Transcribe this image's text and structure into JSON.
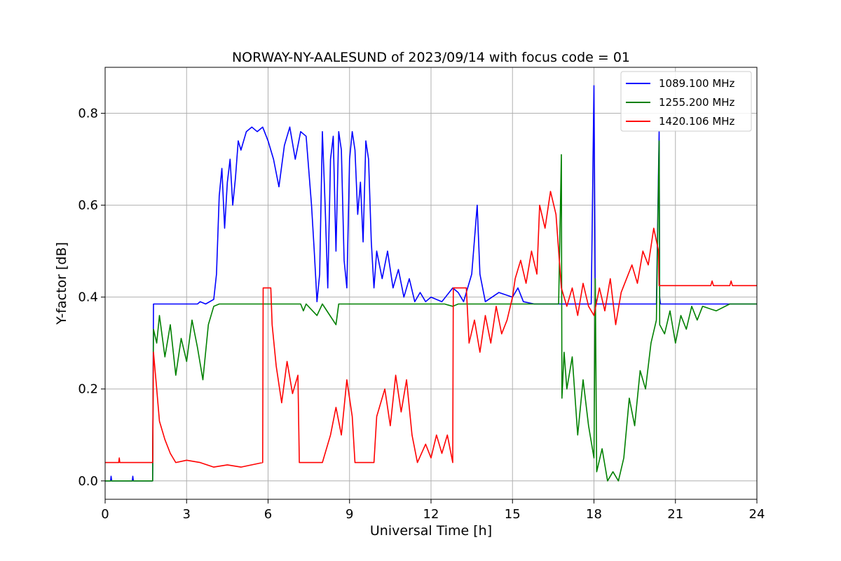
{
  "chart_data": {
    "type": "line",
    "title": "NORWAY-NY-AALESUND of 2023/09/14 with focus code = 01",
    "xlabel": "Universal Time [h]",
    "ylabel": "Y-factor [dB]",
    "xlim": [
      0,
      24
    ],
    "ylim": [
      -0.04,
      0.9
    ],
    "xticks": [
      0,
      3,
      6,
      9,
      12,
      15,
      18,
      21,
      24
    ],
    "xtick_labels": [
      "0",
      "3",
      "6",
      "9",
      "12",
      "15",
      "18",
      "21",
      "24"
    ],
    "yticks": [
      0.0,
      0.2,
      0.4,
      0.6,
      0.8
    ],
    "ytick_labels": [
      "0.0",
      "0.2",
      "0.4",
      "0.6",
      "0.8"
    ],
    "grid": true,
    "legend_position": "top-right",
    "series": [
      {
        "name": "1089.100 MHz",
        "color": "#0000ff",
        "points": [
          [
            0,
            0.0
          ],
          [
            0.2,
            0.0
          ],
          [
            0.22,
            0.01
          ],
          [
            0.24,
            0.0
          ],
          [
            1.0,
            0.0
          ],
          [
            1.02,
            0.01
          ],
          [
            1.04,
            0.0
          ],
          [
            1.75,
            0.0
          ],
          [
            1.78,
            0.385
          ],
          [
            3.4,
            0.385
          ],
          [
            3.5,
            0.39
          ],
          [
            3.7,
            0.385
          ],
          [
            4.0,
            0.395
          ],
          [
            4.1,
            0.45
          ],
          [
            4.2,
            0.62
          ],
          [
            4.3,
            0.68
          ],
          [
            4.4,
            0.55
          ],
          [
            4.5,
            0.65
          ],
          [
            4.6,
            0.7
          ],
          [
            4.7,
            0.6
          ],
          [
            4.8,
            0.66
          ],
          [
            4.9,
            0.74
          ],
          [
            5.0,
            0.72
          ],
          [
            5.2,
            0.76
          ],
          [
            5.4,
            0.77
          ],
          [
            5.6,
            0.76
          ],
          [
            5.8,
            0.77
          ],
          [
            6.0,
            0.74
          ],
          [
            6.2,
            0.7
          ],
          [
            6.4,
            0.64
          ],
          [
            6.6,
            0.73
          ],
          [
            6.8,
            0.77
          ],
          [
            7.0,
            0.7
          ],
          [
            7.2,
            0.76
          ],
          [
            7.4,
            0.75
          ],
          [
            7.6,
            0.6
          ],
          [
            7.7,
            0.5
          ],
          [
            7.8,
            0.39
          ],
          [
            7.9,
            0.45
          ],
          [
            8.0,
            0.76
          ],
          [
            8.1,
            0.6
          ],
          [
            8.2,
            0.42
          ],
          [
            8.3,
            0.7
          ],
          [
            8.4,
            0.75
          ],
          [
            8.5,
            0.5
          ],
          [
            8.6,
            0.76
          ],
          [
            8.7,
            0.72
          ],
          [
            8.8,
            0.48
          ],
          [
            8.9,
            0.42
          ],
          [
            9.0,
            0.7
          ],
          [
            9.1,
            0.76
          ],
          [
            9.2,
            0.72
          ],
          [
            9.3,
            0.58
          ],
          [
            9.4,
            0.65
          ],
          [
            9.5,
            0.52
          ],
          [
            9.6,
            0.74
          ],
          [
            9.7,
            0.7
          ],
          [
            9.8,
            0.52
          ],
          [
            9.9,
            0.42
          ],
          [
            10.0,
            0.5
          ],
          [
            10.2,
            0.44
          ],
          [
            10.4,
            0.5
          ],
          [
            10.6,
            0.42
          ],
          [
            10.8,
            0.46
          ],
          [
            11.0,
            0.4
          ],
          [
            11.2,
            0.44
          ],
          [
            11.4,
            0.39
          ],
          [
            11.6,
            0.41
          ],
          [
            11.8,
            0.39
          ],
          [
            12.0,
            0.4
          ],
          [
            12.4,
            0.39
          ],
          [
            12.8,
            0.42
          ],
          [
            13.0,
            0.41
          ],
          [
            13.2,
            0.39
          ],
          [
            13.5,
            0.45
          ],
          [
            13.7,
            0.6
          ],
          [
            13.8,
            0.45
          ],
          [
            14.0,
            0.39
          ],
          [
            14.5,
            0.41
          ],
          [
            15.0,
            0.4
          ],
          [
            15.2,
            0.42
          ],
          [
            15.4,
            0.39
          ],
          [
            15.8,
            0.385
          ],
          [
            17.9,
            0.385
          ],
          [
            18.0,
            0.86
          ],
          [
            18.05,
            0.4
          ],
          [
            18.1,
            0.385
          ],
          [
            20.3,
            0.385
          ],
          [
            20.4,
            0.76
          ],
          [
            20.42,
            0.4
          ],
          [
            20.45,
            0.385
          ],
          [
            24,
            0.385
          ]
        ]
      },
      {
        "name": "1255.200 MHz",
        "color": "#008000",
        "points": [
          [
            0,
            0.0
          ],
          [
            1.75,
            0.0
          ],
          [
            1.78,
            0.33
          ],
          [
            1.9,
            0.3
          ],
          [
            2.0,
            0.36
          ],
          [
            2.2,
            0.27
          ],
          [
            2.4,
            0.34
          ],
          [
            2.6,
            0.23
          ],
          [
            2.8,
            0.31
          ],
          [
            3.0,
            0.26
          ],
          [
            3.2,
            0.35
          ],
          [
            3.4,
            0.29
          ],
          [
            3.6,
            0.22
          ],
          [
            3.8,
            0.34
          ],
          [
            4.0,
            0.38
          ],
          [
            4.2,
            0.385
          ],
          [
            7.2,
            0.385
          ],
          [
            7.3,
            0.37
          ],
          [
            7.4,
            0.385
          ],
          [
            7.8,
            0.36
          ],
          [
            8.0,
            0.385
          ],
          [
            8.5,
            0.34
          ],
          [
            8.6,
            0.385
          ],
          [
            12.5,
            0.385
          ],
          [
            12.8,
            0.38
          ],
          [
            13.0,
            0.385
          ],
          [
            16.7,
            0.385
          ],
          [
            16.8,
            0.71
          ],
          [
            16.82,
            0.18
          ],
          [
            16.9,
            0.28
          ],
          [
            17.0,
            0.2
          ],
          [
            17.2,
            0.27
          ],
          [
            17.4,
            0.1
          ],
          [
            17.6,
            0.22
          ],
          [
            17.8,
            0.12
          ],
          [
            18.0,
            0.05
          ],
          [
            18.05,
            0.44
          ],
          [
            18.1,
            0.02
          ],
          [
            18.3,
            0.07
          ],
          [
            18.5,
            0.0
          ],
          [
            18.7,
            0.02
          ],
          [
            18.9,
            0.0
          ],
          [
            19.1,
            0.05
          ],
          [
            19.3,
            0.18
          ],
          [
            19.5,
            0.12
          ],
          [
            19.7,
            0.24
          ],
          [
            19.9,
            0.2
          ],
          [
            20.1,
            0.3
          ],
          [
            20.3,
            0.35
          ],
          [
            20.4,
            0.74
          ],
          [
            20.42,
            0.34
          ],
          [
            20.6,
            0.32
          ],
          [
            20.8,
            0.37
          ],
          [
            21.0,
            0.3
          ],
          [
            21.2,
            0.36
          ],
          [
            21.4,
            0.33
          ],
          [
            21.6,
            0.38
          ],
          [
            21.8,
            0.35
          ],
          [
            22.0,
            0.38
          ],
          [
            22.5,
            0.37
          ],
          [
            23.0,
            0.385
          ],
          [
            24,
            0.385
          ]
        ]
      },
      {
        "name": "1420.106 MHz",
        "color": "#ff0000",
        "points": [
          [
            0,
            0.04
          ],
          [
            0.5,
            0.04
          ],
          [
            0.52,
            0.05
          ],
          [
            0.54,
            0.04
          ],
          [
            1.75,
            0.04
          ],
          [
            1.78,
            0.28
          ],
          [
            1.9,
            0.2
          ],
          [
            2.0,
            0.13
          ],
          [
            2.2,
            0.09
          ],
          [
            2.4,
            0.06
          ],
          [
            2.6,
            0.04
          ],
          [
            3.0,
            0.045
          ],
          [
            3.5,
            0.04
          ],
          [
            4.0,
            0.03
          ],
          [
            4.5,
            0.035
          ],
          [
            5.0,
            0.03
          ],
          [
            5.8,
            0.04
          ],
          [
            5.82,
            0.42
          ],
          [
            6.1,
            0.42
          ],
          [
            6.15,
            0.34
          ],
          [
            6.3,
            0.25
          ],
          [
            6.5,
            0.17
          ],
          [
            6.7,
            0.26
          ],
          [
            6.9,
            0.19
          ],
          [
            7.1,
            0.23
          ],
          [
            7.15,
            0.04
          ],
          [
            8.0,
            0.04
          ],
          [
            8.3,
            0.1
          ],
          [
            8.5,
            0.16
          ],
          [
            8.7,
            0.1
          ],
          [
            8.9,
            0.22
          ],
          [
            9.1,
            0.14
          ],
          [
            9.2,
            0.04
          ],
          [
            9.9,
            0.04
          ],
          [
            10.0,
            0.14
          ],
          [
            10.3,
            0.2
          ],
          [
            10.5,
            0.12
          ],
          [
            10.7,
            0.23
          ],
          [
            10.9,
            0.15
          ],
          [
            11.1,
            0.22
          ],
          [
            11.3,
            0.1
          ],
          [
            11.5,
            0.04
          ],
          [
            11.8,
            0.08
          ],
          [
            12.0,
            0.05
          ],
          [
            12.2,
            0.1
          ],
          [
            12.4,
            0.06
          ],
          [
            12.6,
            0.1
          ],
          [
            12.8,
            0.04
          ],
          [
            12.82,
            0.42
          ],
          [
            13.3,
            0.42
          ],
          [
            13.4,
            0.3
          ],
          [
            13.6,
            0.35
          ],
          [
            13.8,
            0.28
          ],
          [
            14.0,
            0.36
          ],
          [
            14.2,
            0.3
          ],
          [
            14.4,
            0.38
          ],
          [
            14.6,
            0.32
          ],
          [
            14.8,
            0.35
          ],
          [
            15.0,
            0.4
          ],
          [
            15.1,
            0.44
          ],
          [
            15.3,
            0.48
          ],
          [
            15.5,
            0.43
          ],
          [
            15.7,
            0.5
          ],
          [
            15.9,
            0.45
          ],
          [
            16.0,
            0.6
          ],
          [
            16.2,
            0.55
          ],
          [
            16.4,
            0.63
          ],
          [
            16.6,
            0.58
          ],
          [
            16.8,
            0.42
          ],
          [
            17.0,
            0.38
          ],
          [
            17.2,
            0.42
          ],
          [
            17.4,
            0.36
          ],
          [
            17.6,
            0.43
          ],
          [
            17.8,
            0.38
          ],
          [
            18.0,
            0.36
          ],
          [
            18.2,
            0.42
          ],
          [
            18.4,
            0.37
          ],
          [
            18.6,
            0.44
          ],
          [
            18.8,
            0.34
          ],
          [
            19.0,
            0.41
          ],
          [
            19.2,
            0.44
          ],
          [
            19.4,
            0.47
          ],
          [
            19.6,
            0.43
          ],
          [
            19.8,
            0.5
          ],
          [
            20.0,
            0.47
          ],
          [
            20.2,
            0.55
          ],
          [
            20.38,
            0.5
          ],
          [
            20.4,
            0.425
          ],
          [
            22.3,
            0.425
          ],
          [
            22.35,
            0.435
          ],
          [
            22.4,
            0.425
          ],
          [
            23.0,
            0.425
          ],
          [
            23.05,
            0.435
          ],
          [
            23.1,
            0.425
          ],
          [
            24,
            0.425
          ]
        ]
      }
    ]
  }
}
